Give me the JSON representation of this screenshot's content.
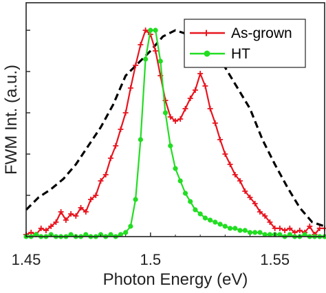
{
  "chart_data": {
    "type": "line",
    "xlabel": "Photon Energy (eV)",
    "ylabel": "FWM Int. (a.u.)",
    "xlim": [
      1.45,
      1.57
    ],
    "ylim": [
      0,
      1.0
    ],
    "x_ticks": [
      1.45,
      1.5,
      1.55
    ],
    "x_tick_labels": [
      "1.45",
      "1.5",
      "1.55"
    ],
    "y_ticks": [
      0.2,
      0.4,
      0.6,
      0.8,
      1.0
    ],
    "y_tick_labels": [],
    "grid": false,
    "legend_position": "top-right",
    "series": [
      {
        "name": "As-grown",
        "color": "#e8141e",
        "marker": "plus",
        "x": [
          1.45,
          1.452,
          1.454,
          1.456,
          1.458,
          1.46,
          1.462,
          1.464,
          1.466,
          1.468,
          1.47,
          1.472,
          1.474,
          1.476,
          1.478,
          1.48,
          1.482,
          1.484,
          1.486,
          1.488,
          1.49,
          1.492,
          1.494,
          1.496,
          1.498,
          1.5,
          1.502,
          1.504,
          1.506,
          1.508,
          1.51,
          1.512,
          1.514,
          1.516,
          1.518,
          1.52,
          1.522,
          1.524,
          1.526,
          1.528,
          1.53,
          1.532,
          1.534,
          1.536,
          1.538,
          1.54,
          1.542,
          1.544,
          1.546,
          1.548,
          1.55,
          1.552,
          1.554,
          1.556,
          1.558,
          1.56,
          1.562,
          1.564,
          1.566,
          1.568,
          1.57
        ],
        "y": [
          0.01,
          0.02,
          0.01,
          0.04,
          0.03,
          0.05,
          0.07,
          0.12,
          0.08,
          0.11,
          0.1,
          0.14,
          0.12,
          0.18,
          0.2,
          0.27,
          0.3,
          0.38,
          0.44,
          0.52,
          0.6,
          0.72,
          0.83,
          0.93,
          1.0,
          0.98,
          0.9,
          0.78,
          0.66,
          0.58,
          0.56,
          0.57,
          0.62,
          0.67,
          0.71,
          0.79,
          0.73,
          0.62,
          0.55,
          0.47,
          0.4,
          0.35,
          0.3,
          0.27,
          0.22,
          0.19,
          0.16,
          0.12,
          0.1,
          0.07,
          0.04,
          0.04,
          0.03,
          0.04,
          0.02,
          0.03,
          0.02,
          0.05,
          0.01,
          0.04,
          0.04
        ]
      },
      {
        "name": "HT",
        "color": "#22dd22",
        "marker": "circle",
        "x": [
          1.45,
          1.452,
          1.454,
          1.456,
          1.458,
          1.46,
          1.462,
          1.464,
          1.466,
          1.468,
          1.47,
          1.472,
          1.474,
          1.476,
          1.478,
          1.48,
          1.482,
          1.484,
          1.486,
          1.488,
          1.49,
          1.492,
          1.494,
          1.496,
          1.498,
          1.5,
          1.502,
          1.504,
          1.506,
          1.508,
          1.51,
          1.512,
          1.514,
          1.516,
          1.518,
          1.52,
          1.522,
          1.524,
          1.526,
          1.528,
          1.53,
          1.532,
          1.534,
          1.536,
          1.538,
          1.54,
          1.542,
          1.544,
          1.546,
          1.548,
          1.55,
          1.552,
          1.554,
          1.556,
          1.558,
          1.56,
          1.562,
          1.564,
          1.566,
          1.568,
          1.57
        ],
        "y": [
          0.0,
          0.0,
          0.01,
          0.0,
          0.0,
          0.01,
          0.0,
          0.0,
          0.0,
          0.01,
          0.0,
          0.0,
          0.01,
          0.0,
          0.0,
          0.01,
          0.0,
          0.01,
          0.0,
          0.01,
          0.02,
          0.05,
          0.18,
          0.47,
          0.86,
          1.0,
          1.0,
          0.85,
          0.6,
          0.44,
          0.33,
          0.27,
          0.21,
          0.17,
          0.13,
          0.11,
          0.09,
          0.08,
          0.07,
          0.06,
          0.05,
          0.04,
          0.04,
          0.03,
          0.03,
          0.02,
          0.02,
          0.02,
          0.01,
          0.01,
          0.01,
          0.01,
          0.0,
          0.01,
          0.0,
          0.0,
          0.01,
          0.0,
          0.0,
          0.0,
          0.0
        ]
      },
      {
        "color": "#000000",
        "line_style": "dashed",
        "x": [
          1.45,
          1.455,
          1.46,
          1.465,
          1.47,
          1.475,
          1.48,
          1.485,
          1.49,
          1.495,
          1.5,
          1.505,
          1.51,
          1.515,
          1.52,
          1.525,
          1.53,
          1.535,
          1.54,
          1.545,
          1.55,
          1.555,
          1.56,
          1.565,
          1.57
        ],
        "y": [
          0.13,
          0.19,
          0.23,
          0.28,
          0.35,
          0.44,
          0.53,
          0.64,
          0.78,
          0.84,
          0.9,
          0.97,
          1.0,
          0.98,
          0.95,
          0.89,
          0.82,
          0.72,
          0.62,
          0.47,
          0.35,
          0.24,
          0.14,
          0.07,
          0.05
        ]
      }
    ]
  }
}
